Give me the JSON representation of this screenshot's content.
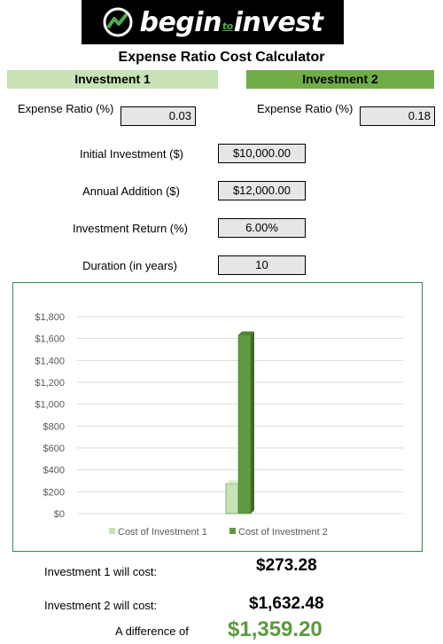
{
  "brand": {
    "prefix": "begin",
    "mid": "to",
    "suffix": "invest"
  },
  "title": "Expense Ratio Cost Calculator",
  "investment1": {
    "header": "Investment 1",
    "expense_label": "Expense Ratio (%)",
    "expense_value": "0.03"
  },
  "investment2": {
    "header": "Investment 2",
    "expense_label": "Expense Ratio (%)",
    "expense_value": "0.18"
  },
  "inputs": [
    {
      "label": "Initial Investment ($)",
      "value": "$10,000.00"
    },
    {
      "label": "Annual Addition ($)",
      "value": "$12,000.00"
    },
    {
      "label": "Investment Return (%)",
      "value": "6.00%"
    },
    {
      "label": "Duration (in years)",
      "value": "10"
    }
  ],
  "chart_data": {
    "type": "bar",
    "categories": [
      ""
    ],
    "series": [
      {
        "name": "Cost of Investment 1",
        "values": [
          273.28
        ],
        "color": "#c7e2b4"
      },
      {
        "name": "Cost of Investment 2",
        "values": [
          1632.48
        ],
        "color": "#5f9a3f"
      }
    ],
    "ylim": [
      0,
      1800
    ],
    "yticks": [
      "$0",
      "$200",
      "$400",
      "$600",
      "$800",
      "$1,000",
      "$1,200",
      "$1,400",
      "$1,600",
      "$1,800"
    ],
    "legend": "bottom",
    "grid": true
  },
  "results": {
    "inv1_label": "Investment 1 will cost:",
    "inv1_value": "$273.28",
    "inv2_label": "Investment 2 will cost:",
    "inv2_value": "$1,632.48",
    "diff_label": "A difference of",
    "diff_value": "$1,359.20"
  },
  "colors": {
    "accent": "#70ad47",
    "light_accent": "#c7e2b4",
    "field_bg": "#e7e6e6"
  }
}
